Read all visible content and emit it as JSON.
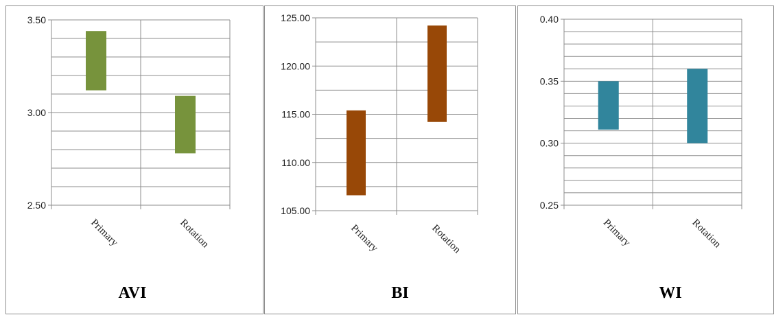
{
  "chart_data": [
    {
      "type": "bar",
      "title": "AVI",
      "categories": [
        "Primary",
        "Rotation"
      ],
      "ranges": [
        [
          3.12,
          3.44
        ],
        [
          2.78,
          3.09
        ]
      ],
      "ylim": [
        2.5,
        3.5
      ],
      "yticks": [
        "2.50",
        "3.00",
        "3.50"
      ],
      "minor_step": 0.1,
      "color": "#77933c"
    },
    {
      "type": "bar",
      "title": "BI",
      "categories": [
        "Primary",
        "Rotation"
      ],
      "ranges": [
        [
          106.6,
          115.4
        ],
        [
          114.2,
          124.2
        ]
      ],
      "ylim": [
        105,
        125
      ],
      "yticks": [
        "105.00",
        "110.00",
        "115.00",
        "120.00",
        "125.00"
      ],
      "minor_step": 2.5,
      "color": "#984807"
    },
    {
      "type": "bar",
      "title": "WI",
      "categories": [
        "Primary",
        "Rotation"
      ],
      "ranges": [
        [
          0.311,
          0.35
        ],
        [
          0.3,
          0.36
        ]
      ],
      "ylim": [
        0.25,
        0.4
      ],
      "yticks": [
        "0.25",
        "0.30",
        "0.35",
        "0.40"
      ],
      "minor_step": 0.01,
      "color": "#31859c"
    }
  ]
}
